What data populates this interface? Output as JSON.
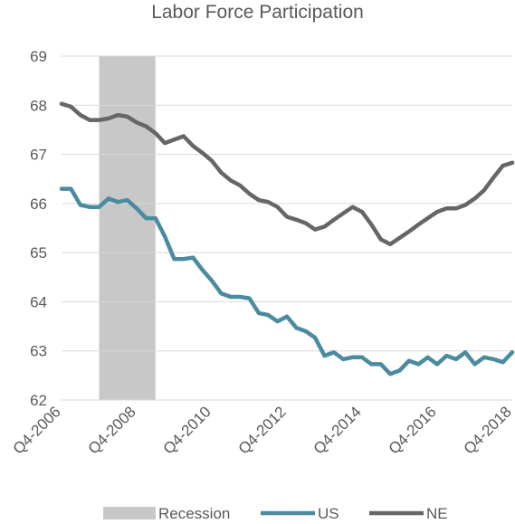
{
  "chart_data": {
    "type": "line",
    "title": "Labor Force Participation",
    "xlabel": "",
    "ylabel": "",
    "ylim": [
      62,
      69
    ],
    "yticks": [
      62,
      63,
      64,
      65,
      66,
      67,
      68,
      69
    ],
    "x_tick_labels": [
      "Q4-2006",
      "Q4-2008",
      "Q4-2010",
      "Q4-2012",
      "Q4-2014",
      "Q4-2016",
      "Q4-2018"
    ],
    "x": [
      "Q4-2006",
      "Q1-2007",
      "Q2-2007",
      "Q3-2007",
      "Q4-2007",
      "Q1-2008",
      "Q2-2008",
      "Q3-2008",
      "Q4-2008",
      "Q1-2009",
      "Q2-2009",
      "Q3-2009",
      "Q4-2009",
      "Q1-2010",
      "Q2-2010",
      "Q3-2010",
      "Q4-2010",
      "Q1-2011",
      "Q2-2011",
      "Q3-2011",
      "Q4-2011",
      "Q1-2012",
      "Q2-2012",
      "Q3-2012",
      "Q4-2012",
      "Q1-2013",
      "Q2-2013",
      "Q3-2013",
      "Q4-2013",
      "Q1-2014",
      "Q2-2014",
      "Q3-2014",
      "Q4-2014",
      "Q1-2015",
      "Q2-2015",
      "Q3-2015",
      "Q4-2015",
      "Q1-2016",
      "Q2-2016",
      "Q3-2016",
      "Q4-2016",
      "Q1-2017",
      "Q2-2017",
      "Q3-2017",
      "Q4-2017",
      "Q1-2018",
      "Q2-2018",
      "Q3-2018",
      "Q4-2018"
    ],
    "series": [
      {
        "name": "US",
        "color": "#4a8ba0",
        "values": [
          66.3,
          66.3,
          65.97,
          65.93,
          65.93,
          66.1,
          66.03,
          66.07,
          65.9,
          65.7,
          65.7,
          65.33,
          64.87,
          64.87,
          64.9,
          64.65,
          64.43,
          64.17,
          64.1,
          64.1,
          64.07,
          63.77,
          63.73,
          63.6,
          63.7,
          63.47,
          63.4,
          63.27,
          62.9,
          62.97,
          62.83,
          62.87,
          62.87,
          62.73,
          62.73,
          62.53,
          62.6,
          62.8,
          62.73,
          62.87,
          62.73,
          62.9,
          62.83,
          62.97,
          62.73,
          62.87,
          62.83,
          62.77,
          62.97
        ]
      },
      {
        "name": "NE",
        "color": "#666666",
        "values": [
          68.03,
          67.97,
          67.8,
          67.7,
          67.7,
          67.73,
          67.8,
          67.77,
          67.65,
          67.57,
          67.43,
          67.23,
          67.3,
          67.37,
          67.17,
          67.03,
          66.87,
          66.63,
          66.47,
          66.37,
          66.2,
          66.07,
          66.03,
          65.93,
          65.73,
          65.67,
          65.6,
          65.47,
          65.53,
          65.67,
          65.8,
          65.93,
          65.83,
          65.57,
          65.27,
          65.17,
          65.3,
          65.43,
          65.57,
          65.7,
          65.83,
          65.9,
          65.9,
          65.97,
          66.1,
          66.27,
          66.53,
          66.77,
          66.83
        ]
      }
    ],
    "recession": {
      "name": "Recession",
      "color": "#c8c8c8",
      "start": "Q4-2007",
      "end": "Q2-2009"
    },
    "legend": [
      "Recession",
      "US",
      "NE"
    ],
    "legend_position": "bottom",
    "grid": "horizontal"
  }
}
